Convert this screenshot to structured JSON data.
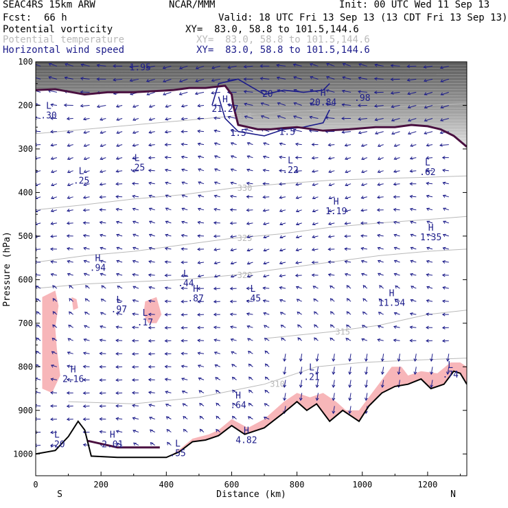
{
  "header": {
    "model": "SEAC4RS 15km ARW",
    "center": "NCAR/MMM",
    "init": "Init: 00 UTC Wed 11 Sep 13",
    "fcst_label": "Fcst:",
    "fcst_value": "66 h",
    "valid": "Valid: 18 UTC Fri 13 Sep 13 (13 CDT Fri 13 Sep 13)",
    "fields": [
      {
        "name": "Potential vorticity",
        "xy": "XY=  83.0, 58.8 to 101.5,144.6",
        "color": "#000000"
      },
      {
        "name": "Potential temperature",
        "xy": "XY=  83.0, 58.8 to 101.5,144.6",
        "color": "#b9b9b9"
      },
      {
        "name": "Horizontal wind speed",
        "xy": "XY=  83.0, 58.8 to 101.5,144.6",
        "color": "#1c1c8a"
      }
    ]
  },
  "colors": {
    "pv_fill": "#f7b6b9",
    "pv_contour": "#4a1040",
    "theta_contour": "#b9b9b9",
    "wind": "#1c1c8a",
    "terrain": "#000000"
  },
  "chart_data": {
    "type": "cross-section",
    "xlabel": "Distance (km)",
    "ylabel": "Pressure (hPa)",
    "xlim": [
      0,
      1320
    ],
    "ylim": [
      1050,
      100
    ],
    "x_ticks": [
      0,
      200,
      400,
      600,
      800,
      1000,
      1200
    ],
    "y_ticks": [
      100,
      200,
      300,
      400,
      500,
      600,
      700,
      800,
      900,
      1000
    ],
    "endpoints": {
      "left": "S",
      "right": "N"
    },
    "terrain": [
      [
        0,
        1000
      ],
      [
        60,
        992
      ],
      [
        100,
        960
      ],
      [
        130,
        925
      ],
      [
        150,
        945
      ],
      [
        170,
        1005
      ],
      [
        250,
        1008
      ],
      [
        400,
        1008
      ],
      [
        440,
        995
      ],
      [
        480,
        972
      ],
      [
        520,
        968
      ],
      [
        560,
        958
      ],
      [
        600,
        935
      ],
      [
        640,
        955
      ],
      [
        700,
        940
      ],
      [
        760,
        905
      ],
      [
        800,
        880
      ],
      [
        830,
        900
      ],
      [
        860,
        885
      ],
      [
        900,
        925
      ],
      [
        940,
        900
      ],
      [
        970,
        915
      ],
      [
        990,
        925
      ],
      [
        1020,
        890
      ],
      [
        1060,
        860
      ],
      [
        1100,
        845
      ],
      [
        1140,
        840
      ],
      [
        1180,
        828
      ],
      [
        1210,
        850
      ],
      [
        1250,
        840
      ],
      [
        1280,
        810
      ],
      [
        1300,
        815
      ],
      [
        1320,
        840
      ]
    ],
    "tropopause_pv_line": [
      [
        0,
        165
      ],
      [
        60,
        163
      ],
      [
        150,
        175
      ],
      [
        220,
        170
      ],
      [
        300,
        170
      ],
      [
        420,
        165
      ],
      [
        470,
        160
      ],
      [
        520,
        160
      ],
      [
        580,
        155
      ],
      [
        600,
        175
      ],
      [
        605,
        200
      ],
      [
        620,
        245
      ],
      [
        680,
        255
      ],
      [
        720,
        255
      ],
      [
        760,
        252
      ],
      [
        800,
        250
      ],
      [
        880,
        258
      ],
      [
        960,
        255
      ],
      [
        1040,
        250
      ],
      [
        1100,
        250
      ],
      [
        1150,
        245
      ],
      [
        1200,
        248
      ],
      [
        1240,
        255
      ],
      [
        1280,
        270
      ],
      [
        1320,
        295
      ]
    ],
    "theta_contours": [
      {
        "label": "335",
        "points": [
          [
            0,
            265
          ],
          [
            150,
            255
          ],
          [
            300,
            245
          ],
          [
            450,
            235
          ],
          [
            600,
            225
          ],
          [
            750,
            215
          ],
          [
            900,
            210
          ],
          [
            1050,
            205
          ],
          [
            1200,
            200
          ],
          [
            1320,
            195
          ]
        ]
      },
      {
        "label": "330",
        "points": [
          [
            0,
            440
          ],
          [
            150,
            428
          ],
          [
            300,
            415
          ],
          [
            450,
            405
          ],
          [
            600,
            390
          ],
          [
            750,
            380
          ],
          [
            900,
            372
          ],
          [
            1050,
            368
          ],
          [
            1200,
            365
          ],
          [
            1320,
            362
          ]
        ]
      },
      {
        "label": "325",
        "points": [
          [
            0,
            560
          ],
          [
            150,
            545
          ],
          [
            300,
            535
          ],
          [
            450,
            520
          ],
          [
            600,
            505
          ],
          [
            750,
            495
          ],
          [
            900,
            480
          ],
          [
            1050,
            470
          ],
          [
            1200,
            462
          ],
          [
            1320,
            455
          ]
        ]
      },
      {
        "label": "320",
        "points": [
          [
            0,
            620
          ],
          [
            150,
            610
          ],
          [
            300,
            605
          ],
          [
            450,
            600
          ],
          [
            600,
            590
          ],
          [
            750,
            575
          ],
          [
            900,
            560
          ],
          [
            1050,
            545
          ],
          [
            1200,
            535
          ],
          [
            1320,
            530
          ]
        ]
      },
      {
        "label": "315",
        "points": [
          [
            700,
            735
          ],
          [
            900,
            720
          ],
          [
            1050,
            705
          ],
          [
            1200,
            680
          ],
          [
            1320,
            670
          ]
        ]
      },
      {
        "label": "310",
        "points": [
          [
            100,
            880
          ],
          [
            300,
            885
          ],
          [
            500,
            870
          ],
          [
            700,
            840
          ],
          [
            860,
            800
          ],
          [
            1000,
            790
          ],
          [
            1150,
            785
          ],
          [
            1320,
            780
          ]
        ]
      }
    ],
    "pv_blobs": [
      [
        [
          20,
          640
        ],
        [
          60,
          625
        ],
        [
          70,
          660
        ],
        [
          60,
          710
        ],
        [
          65,
          760
        ],
        [
          75,
          820
        ],
        [
          50,
          860
        ],
        [
          20,
          850
        ]
      ],
      [
        [
          110,
          640
        ],
        [
          125,
          645
        ],
        [
          130,
          665
        ],
        [
          115,
          670
        ]
      ],
      [
        [
          335,
          650
        ],
        [
          370,
          640
        ],
        [
          385,
          680
        ],
        [
          370,
          700
        ],
        [
          345,
          700
        ],
        [
          330,
          680
        ]
      ],
      [
        [
          410,
          1005
        ],
        [
          440,
          990
        ],
        [
          480,
          965
        ],
        [
          530,
          955
        ],
        [
          560,
          945
        ],
        [
          600,
          920
        ],
        [
          650,
          940
        ],
        [
          700,
          920
        ],
        [
          760,
          880
        ],
        [
          800,
          860
        ],
        [
          840,
          870
        ],
        [
          880,
          860
        ],
        [
          920,
          880
        ],
        [
          950,
          900
        ],
        [
          990,
          900
        ],
        [
          1030,
          860
        ],
        [
          1060,
          830
        ],
        [
          1090,
          800
        ],
        [
          1120,
          800
        ],
        [
          1140,
          820
        ],
        [
          1180,
          810
        ],
        [
          1230,
          815
        ],
        [
          1270,
          790
        ],
        [
          1300,
          790
        ],
        [
          1320,
          800
        ],
        [
          1320,
          840
        ],
        [
          1300,
          815
        ],
        [
          1280,
          810
        ],
        [
          1250,
          840
        ],
        [
          1210,
          850
        ],
        [
          1180,
          828
        ],
        [
          1140,
          840
        ],
        [
          1100,
          845
        ],
        [
          1060,
          860
        ],
        [
          1020,
          890
        ],
        [
          990,
          925
        ],
        [
          970,
          915
        ],
        [
          940,
          900
        ],
        [
          900,
          925
        ],
        [
          860,
          885
        ],
        [
          830,
          900
        ],
        [
          800,
          880
        ],
        [
          760,
          905
        ],
        [
          700,
          940
        ],
        [
          640,
          955
        ],
        [
          600,
          935
        ],
        [
          560,
          958
        ],
        [
          520,
          968
        ],
        [
          480,
          972
        ],
        [
          440,
          995
        ],
        [
          400,
          1008
        ]
      ]
    ],
    "annotations": [
      {
        "label": "L",
        "value": ".30",
        "x": 40,
        "y": 230
      },
      {
        "label": "L",
        "value": ".25",
        "x": 140,
        "y": 380
      },
      {
        "label": "L",
        "value": ".25",
        "x": 310,
        "y": 350
      },
      {
        "label": "L",
        "value": ".22",
        "x": 780,
        "y": 355
      },
      {
        "label": "L",
        "value": ".62",
        "x": 1200,
        "y": 360
      },
      {
        "label": "H",
        "value": "1.19",
        "x": 920,
        "y": 450
      },
      {
        "label": "H",
        "value": "1.35",
        "x": 1210,
        "y": 510
      },
      {
        "label": "H",
        "value": ".94",
        "x": 190,
        "y": 580
      },
      {
        "label": "L",
        "value": ".44",
        "x": 460,
        "y": 615
      },
      {
        "label": "H",
        "value": ".87",
        "x": 490,
        "y": 650
      },
      {
        "label": "L",
        "value": ".45",
        "x": 665,
        "y": 650
      },
      {
        "label": "L",
        "value": ".97",
        "x": 255,
        "y": 675
      },
      {
        "label": "H",
        "value": "11.54",
        "x": 1090,
        "y": 660
      },
      {
        "label": "L",
        "value": ".17",
        "x": 335,
        "y": 705
      },
      {
        "label": "L",
        "value": ".21",
        "x": 845,
        "y": 830
      },
      {
        "label": "L",
        "value": ".74",
        "x": 1270,
        "y": 825
      },
      {
        "label": "H",
        "value": "2.16",
        "x": 115,
        "y": 835
      },
      {
        "label": "H",
        "value": ".64",
        "x": 620,
        "y": 895
      },
      {
        "label": "L",
        "value": ".20",
        "x": 65,
        "y": 985
      },
      {
        "label": "H",
        "value": "2.01",
        "x": 235,
        "y": 985
      },
      {
        "label": "H",
        "value": "4.82",
        "x": 645,
        "y": 975
      },
      {
        "label": "L",
        "value": ".55",
        "x": 435,
        "y": 1005
      },
      {
        "label": "H",
        "value": "21.27",
        "x": 580,
        "y": 215
      },
      {
        "label": "H",
        "value": "20.84",
        "x": 880,
        "y": 200
      },
      {
        "label": "",
        "value": ".98",
        "x": 1000,
        "y": 190
      },
      {
        "label": "",
        "value": "1.95",
        "x": 320,
        "y": 120
      },
      {
        "label": "",
        "value": "20",
        "x": 710,
        "y": 180
      },
      {
        "label": "",
        "value": "1.5",
        "x": 620,
        "y": 270
      },
      {
        "label": "",
        "value": "1.5",
        "x": 770,
        "y": 268
      }
    ]
  }
}
